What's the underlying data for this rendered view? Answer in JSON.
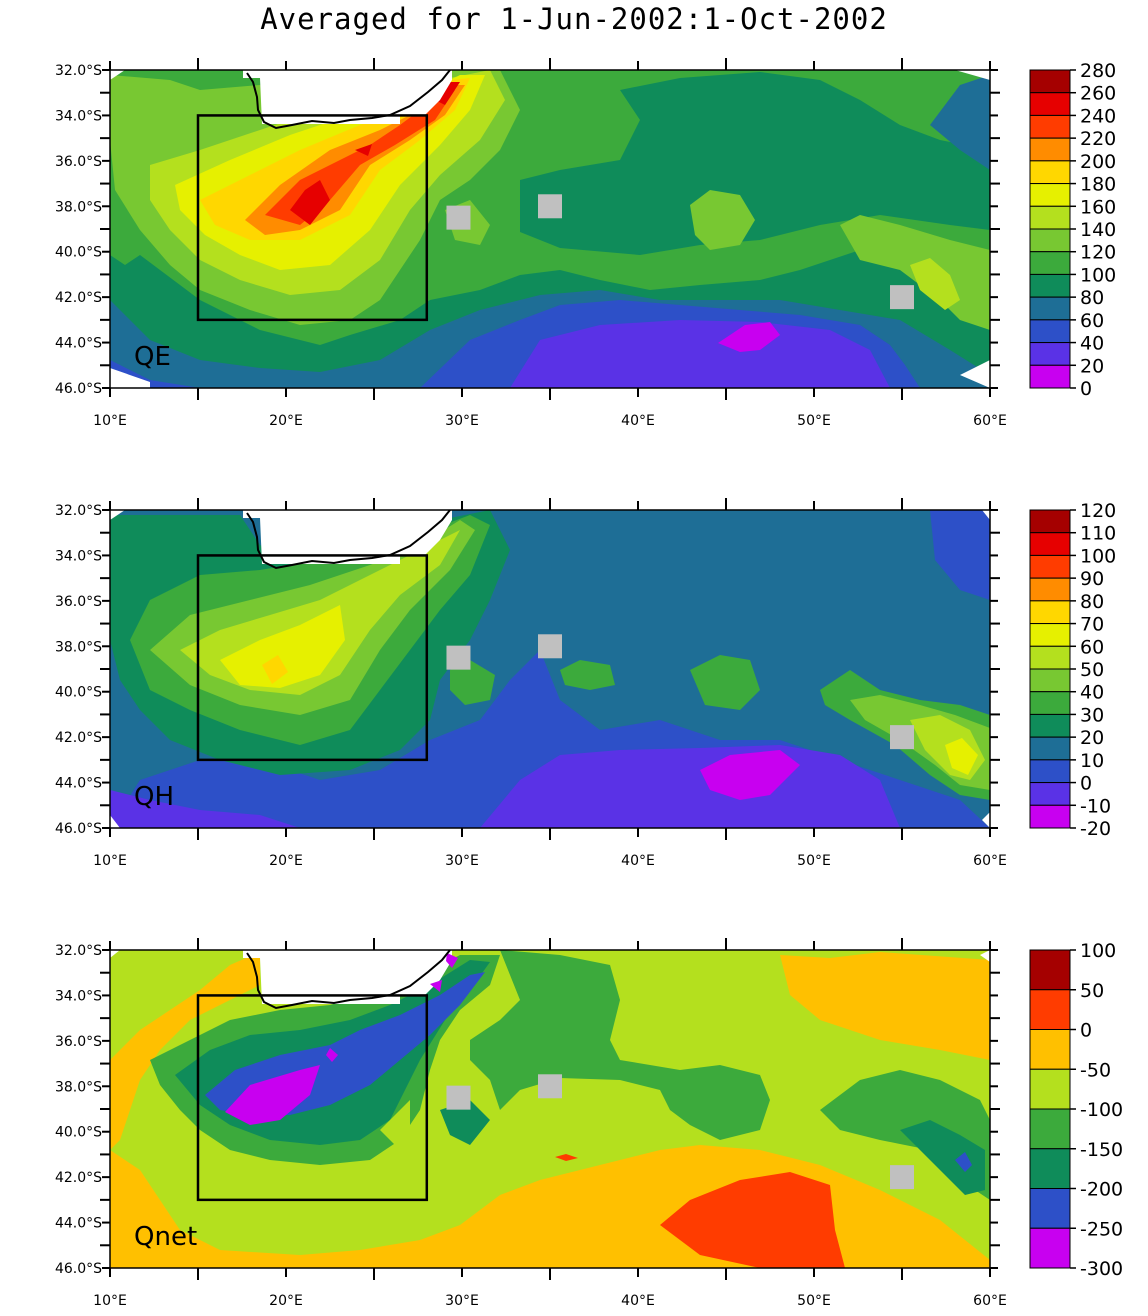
{
  "title": "Averaged for 1-Jun-2002:1-Oct-2002",
  "lat_labels": [
    "32.0°S",
    "34.0°S",
    "36.0°S",
    "38.0°S",
    "40.0°S",
    "42.0°S",
    "44.0°S",
    "46.0°S"
  ],
  "lon_labels": [
    "10°E",
    "20°E",
    "30°E",
    "40°E",
    "50°E",
    "60°E"
  ],
  "panels": [
    {
      "label": "QE",
      "colorbar": {
        "labels": [
          "280",
          "260",
          "240",
          "220",
          "200",
          "180",
          "160",
          "140",
          "120",
          "100",
          "80",
          "60",
          "40",
          "20",
          "0"
        ],
        "colors": [
          "#a50000",
          "#e60000",
          "#ff3c00",
          "#ff8c00",
          "#ffd700",
          "#e6f000",
          "#b4e01e",
          "#78c832",
          "#3caa3c",
          "#0f8c5a",
          "#1e6e96",
          "#2d50c8",
          "#5a32e6",
          "#c800f0"
        ]
      },
      "boxes": [
        {
          "lon_min": 15,
          "lon_max": 28,
          "lat_min": 34,
          "lat_max": 43
        }
      ],
      "masks": [
        {
          "lon": 29.8,
          "lat": 38.5
        },
        {
          "lon": 35,
          "lat": 38
        },
        {
          "lon": 55,
          "lat": 42
        }
      ]
    },
    {
      "label": "QH",
      "colorbar": {
        "labels": [
          "120",
          "110",
          "100",
          "90",
          "80",
          "70",
          "60",
          "50",
          "40",
          "30",
          "20",
          "10",
          "0",
          "-10",
          "-20"
        ],
        "colors": [
          "#a50000",
          "#e60000",
          "#ff3c00",
          "#ff8c00",
          "#ffd700",
          "#e6f000",
          "#b4e01e",
          "#78c832",
          "#3caa3c",
          "#0f8c5a",
          "#1e6e96",
          "#2d50c8",
          "#5a32e6",
          "#c800f0"
        ]
      },
      "boxes": [
        {
          "lon_min": 15,
          "lon_max": 28,
          "lat_min": 34,
          "lat_max": 43
        }
      ],
      "masks": [
        {
          "lon": 29.8,
          "lat": 38.5
        },
        {
          "lon": 35,
          "lat": 38
        },
        {
          "lon": 55,
          "lat": 42
        }
      ]
    },
    {
      "label": "Qnet",
      "colorbar": {
        "labels": [
          "100",
          "50",
          "0",
          "-50",
          "-100",
          "-150",
          "-200",
          "-250",
          "-300"
        ],
        "colors": [
          "#a50000",
          "#ff3c00",
          "#ffc000",
          "#b4e01e",
          "#3caa3c",
          "#0f8c5a",
          "#2d50c8",
          "#c800f0"
        ]
      },
      "boxes": [
        {
          "lon_min": 15,
          "lon_max": 28,
          "lat_min": 34,
          "lat_max": 43
        }
      ],
      "masks": [
        {
          "lon": 29.8,
          "lat": 38.5
        },
        {
          "lon": 35,
          "lat": 38
        },
        {
          "lon": 55,
          "lat": 42
        }
      ]
    }
  ]
}
